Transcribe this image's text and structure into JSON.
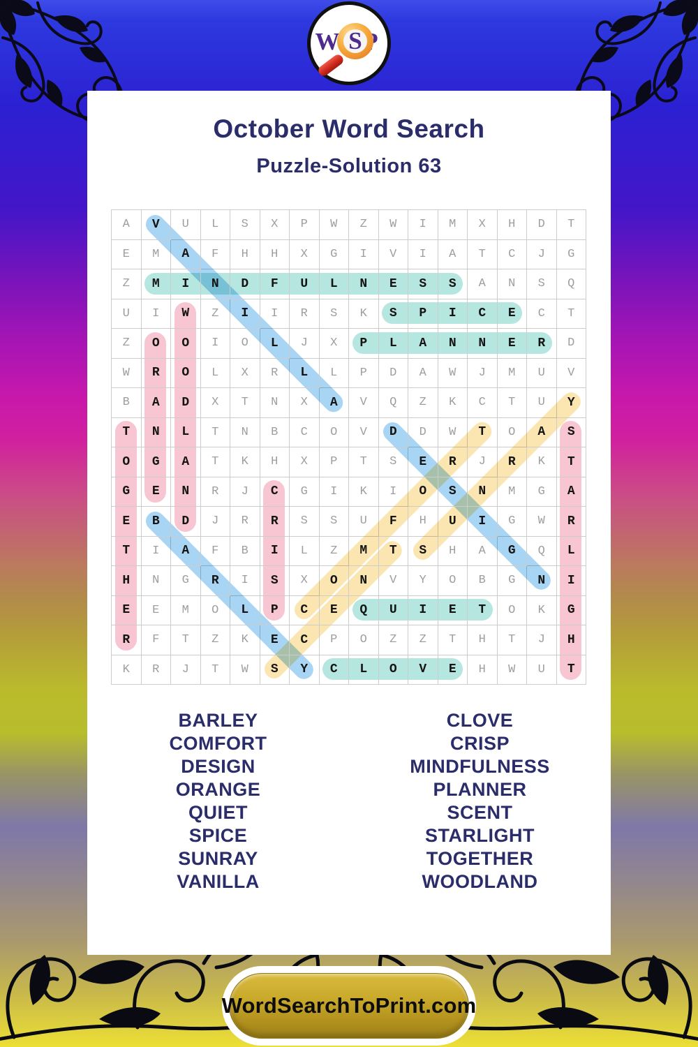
{
  "page": {
    "title": "October Word Search",
    "subtitle": "Puzzle-Solution 63"
  },
  "logo": {
    "letters": [
      "W",
      "S",
      "P"
    ]
  },
  "grid": {
    "size": 16,
    "rows": [
      "AVULSXPWZWIMXHDT",
      "EMAFHHXGIVIATCJG",
      "ZMINDFULNESSANSQ",
      "UIWZIIRSKSPICECT",
      "ZOOIOLJXPLANNERD",
      "WROLXRLLPDAWJMUV",
      "BADXTNXAVQZKCTUY",
      "TNLTNBCOVDDWTOAS",
      "OGATKHXPTSERJRKT",
      "GENRJCGIKIOSNMGA",
      "EBDJRRSSUFHUIGWR",
      "TIAFBILZMTSHAGQL",
      "HNGRISXONVYOBGNI",
      "EEMOLPCEQUIETOKG",
      "RFTZKECPOZZTHTJH",
      "KRJTWSYCLOVEHWUT"
    ]
  },
  "highlight_colors": {
    "teal": "#b5e6df",
    "pink": "#f8c6d2",
    "blue": "#a9d5f4",
    "yellow": "#fbe6b1"
  },
  "solutions": [
    {
      "word": "VANILLA",
      "row": 1,
      "col": 2,
      "dir": "SE",
      "color": "blue"
    },
    {
      "word": "MINDFULNESS",
      "row": 3,
      "col": 2,
      "dir": "E",
      "color": "teal"
    },
    {
      "word": "SPICE",
      "row": 4,
      "col": 10,
      "dir": "E",
      "color": "teal"
    },
    {
      "word": "PLANNER",
      "row": 5,
      "col": 9,
      "dir": "E",
      "color": "teal"
    },
    {
      "word": "WOODLAND",
      "row": 4,
      "col": 3,
      "dir": "S",
      "color": "pink"
    },
    {
      "word": "ORANGE",
      "row": 5,
      "col": 2,
      "dir": "S",
      "color": "pink"
    },
    {
      "word": "TOGETHER",
      "row": 8,
      "col": 1,
      "dir": "S",
      "color": "pink"
    },
    {
      "word": "CRISP",
      "row": 10,
      "col": 6,
      "dir": "S",
      "color": "pink"
    },
    {
      "word": "STARLIGHT",
      "row": 8,
      "col": 16,
      "dir": "S",
      "color": "pink"
    },
    {
      "word": "DESIGN",
      "row": 8,
      "col": 10,
      "dir": "SE",
      "color": "blue"
    },
    {
      "word": "BARLEY",
      "row": 11,
      "col": 2,
      "dir": "SE",
      "color": "blue"
    },
    {
      "word": "COMFORT",
      "row": 14,
      "col": 7,
      "dir": "NE",
      "color": "yellow"
    },
    {
      "word": "SUNRAY",
      "row": 12,
      "col": 11,
      "dir": "NE",
      "color": "yellow"
    },
    {
      "word": "SCENT",
      "row": 16,
      "col": 6,
      "dir": "NE",
      "color": "yellow"
    },
    {
      "word": "QUIET",
      "row": 14,
      "col": 9,
      "dir": "E",
      "color": "teal"
    },
    {
      "word": "CLOVE",
      "row": 16,
      "col": 8,
      "dir": "E",
      "color": "teal"
    }
  ],
  "word_list": {
    "left": [
      "BARLEY",
      "COMFORT",
      "DESIGN",
      "ORANGE",
      "QUIET",
      "SPICE",
      "SUNRAY",
      "VANILLA"
    ],
    "right": [
      "CLOVE",
      "CRISP",
      "MINDFULNESS",
      "PLANNER",
      "SCENT",
      "STARLIGHT",
      "TOGETHER",
      "WOODLAND"
    ]
  },
  "footer": {
    "button_label": "WordSearchToPrint.com"
  }
}
